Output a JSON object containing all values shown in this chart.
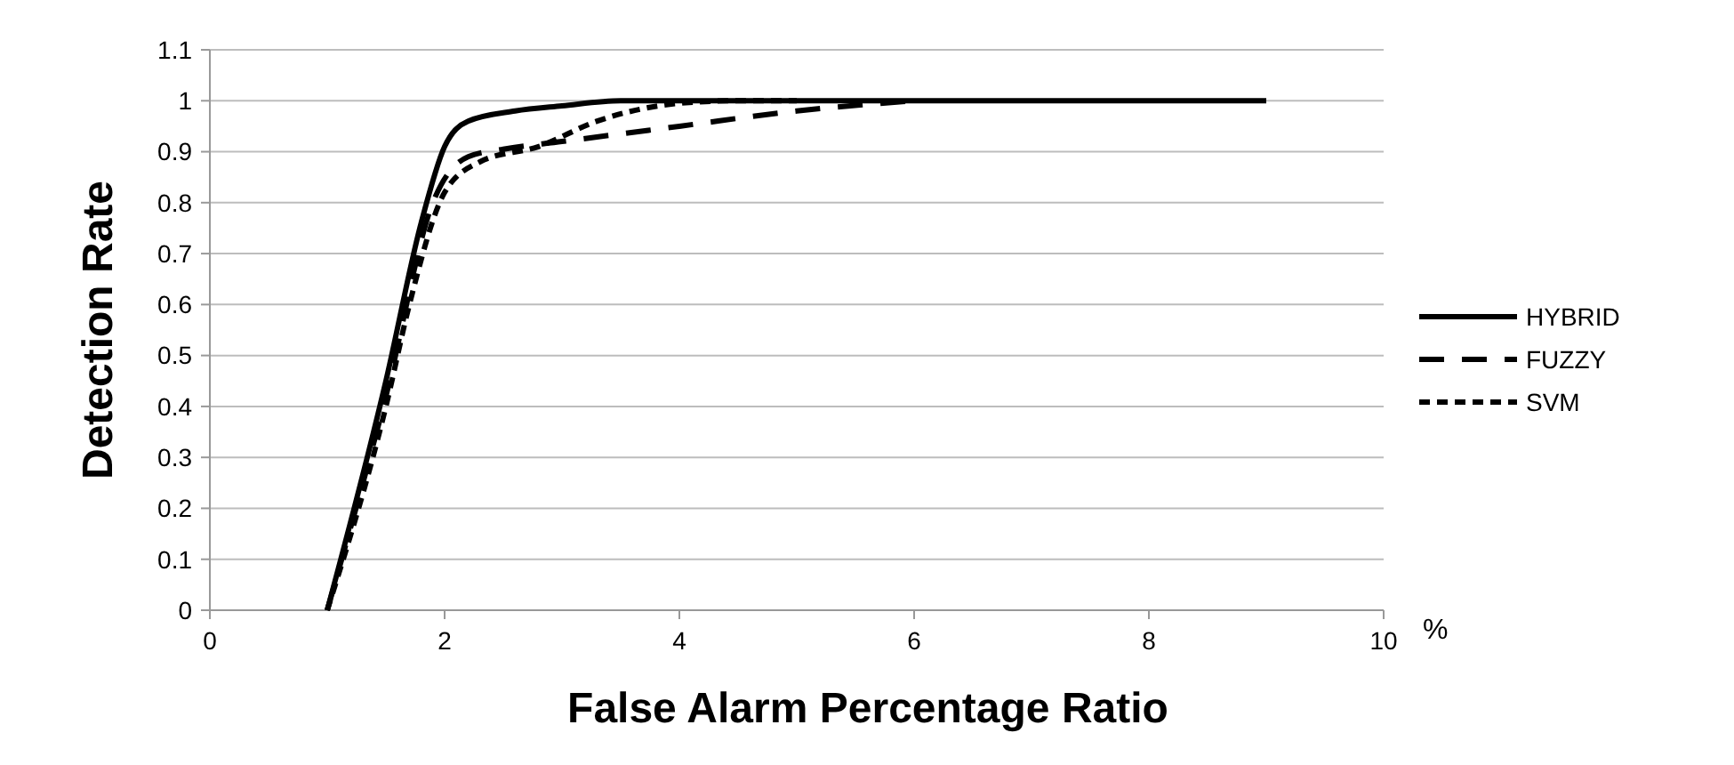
{
  "chart_data": {
    "type": "line",
    "xlabel": "False Alarm Percentage Ratio",
    "ylabel": "Detection Rate",
    "annotations": [
      "%"
    ],
    "xlim": [
      0,
      10
    ],
    "xticks": [
      0,
      2,
      4,
      6,
      8,
      10
    ],
    "ylim": [
      0,
      1.1
    ],
    "yticks": [
      0,
      0.1,
      0.2,
      0.3,
      0.4,
      0.5,
      0.6,
      0.7,
      0.8,
      0.9,
      1,
      1.1
    ],
    "grid": "y",
    "legend": "right",
    "series": [
      {
        "name": "HYBRID",
        "color": "#000000",
        "line_style": "solid",
        "x": [
          1,
          1.5,
          1.8,
          2,
          2.2,
          2.6,
          3,
          3.5,
          4,
          9
        ],
        "values": [
          0,
          0.45,
          0.76,
          0.91,
          0.96,
          0.98,
          0.99,
          1,
          1,
          1
        ]
      },
      {
        "name": "FUZZY",
        "color": "#000000",
        "line_style": "dashed",
        "x": [
          1,
          1.5,
          1.9,
          2.2,
          2.5,
          3,
          4,
          5,
          6
        ],
        "values": [
          0,
          0.42,
          0.8,
          0.89,
          0.905,
          0.92,
          0.95,
          0.98,
          1
        ]
      },
      {
        "name": "SVM",
        "color": "#000000",
        "line_style": "dotted",
        "x": [
          1,
          1.5,
          1.7,
          2,
          2.3,
          2.8,
          3.3,
          4,
          4.5,
          5
        ],
        "values": [
          0,
          0.4,
          0.6,
          0.82,
          0.88,
          0.91,
          0.96,
          0.995,
          1,
          1
        ]
      }
    ]
  }
}
